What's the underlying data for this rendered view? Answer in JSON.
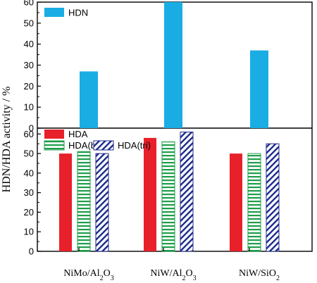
{
  "chart_data": {
    "type": "bar",
    "ylabel": "HDN/HDA activity / %",
    "categories": [
      "NiMo/Al2O3",
      "NiW/Al2O3",
      "NiW/SiO2"
    ],
    "category_labels": [
      {
        "parts": [
          {
            "t": "NiMo/Al",
            "sub": false
          },
          {
            "t": "2",
            "sub": true
          },
          {
            "t": "O",
            "sub": false
          },
          {
            "t": "3",
            "sub": true
          }
        ]
      },
      {
        "parts": [
          {
            "t": "NiW/Al",
            "sub": false
          },
          {
            "t": "2",
            "sub": true
          },
          {
            "t": "O",
            "sub": false
          },
          {
            "t": "3",
            "sub": true
          }
        ]
      },
      {
        "parts": [
          {
            "t": "NiW/SiO",
            "sub": false
          },
          {
            "t": "2",
            "sub": true
          }
        ]
      }
    ],
    "panels": [
      {
        "id": "top",
        "ylim": [
          0,
          60
        ],
        "yticks": [
          0,
          10,
          20,
          30,
          40,
          50,
          60
        ],
        "legend_position": "top-left",
        "series": [
          {
            "name": "HDN",
            "color": "#1AADE4",
            "pattern": "solid",
            "values": [
              27,
              60,
              37
            ]
          }
        ]
      },
      {
        "id": "bottom",
        "ylim": [
          0,
          63
        ],
        "yticks": [
          0,
          10,
          20,
          30,
          40,
          50,
          60
        ],
        "legend_position": "top-left",
        "series": [
          {
            "name": "HDA",
            "color": "#E8202A",
            "pattern": "solid",
            "values": [
              50,
              58,
              50
            ]
          },
          {
            "name": "HDA(bi)",
            "color": "#1E9E4A",
            "pattern": "horizontal-stripes",
            "values": [
              51,
              56,
              50
            ]
          },
          {
            "name": "HDA(tri)",
            "color": "#1B2A8C",
            "pattern": "diagonal-stripes",
            "values": [
              50,
              61,
              55
            ]
          }
        ]
      }
    ]
  }
}
